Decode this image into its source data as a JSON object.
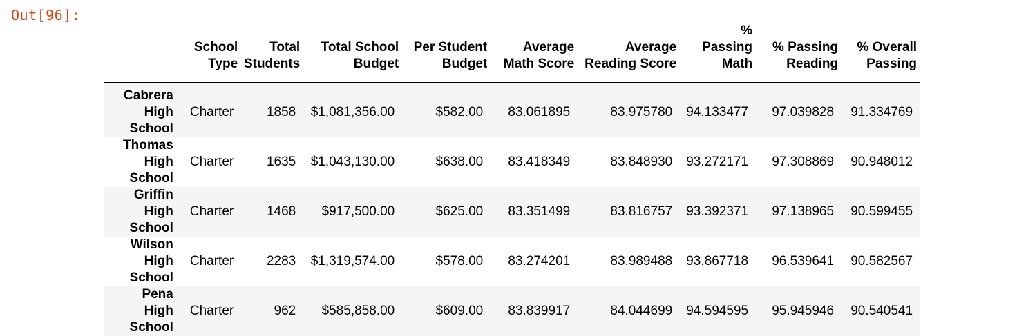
{
  "cell": {
    "prompt": "Out[96]:"
  },
  "table": {
    "columns": [
      [
        "School",
        "Type"
      ],
      [
        "Total",
        "Students"
      ],
      [
        "Total School",
        "Budget"
      ],
      [
        "Per Student",
        "Budget"
      ],
      [
        "Average",
        "Math Score"
      ],
      [
        "Average",
        "Reading Score"
      ],
      [
        "%",
        "Passing",
        "Math"
      ],
      [
        "% Passing",
        "Reading"
      ],
      [
        "% Overall",
        "Passing"
      ]
    ],
    "rows": [
      {
        "index": [
          "Cabrera",
          "High School"
        ],
        "cells": [
          "Charter",
          "1858",
          "$1,081,356.00",
          "$582.00",
          "83.061895",
          "83.975780",
          "94.133477",
          "97.039828",
          "91.334769"
        ]
      },
      {
        "index": [
          "Thomas",
          "High School"
        ],
        "cells": [
          "Charter",
          "1635",
          "$1,043,130.00",
          "$638.00",
          "83.418349",
          "83.848930",
          "93.272171",
          "97.308869",
          "90.948012"
        ]
      },
      {
        "index": [
          "Griffin High",
          "School"
        ],
        "cells": [
          "Charter",
          "1468",
          "$917,500.00",
          "$625.00",
          "83.351499",
          "83.816757",
          "93.392371",
          "97.138965",
          "90.599455"
        ]
      },
      {
        "index": [
          "Wilson High",
          "School"
        ],
        "cells": [
          "Charter",
          "2283",
          "$1,319,574.00",
          "$578.00",
          "83.274201",
          "83.989488",
          "93.867718",
          "96.539641",
          "90.582567"
        ]
      },
      {
        "index": [
          "Pena High",
          "School"
        ],
        "cells": [
          "Charter",
          "962",
          "$585,858.00",
          "$609.00",
          "83.839917",
          "84.044699",
          "94.594595",
          "95.945946",
          "90.540541"
        ]
      }
    ]
  }
}
